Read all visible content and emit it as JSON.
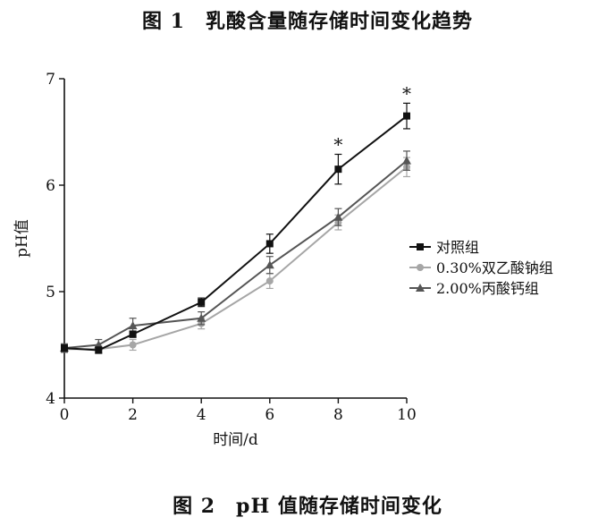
{
  "captions": {
    "top": "图 1　乳酸含量随存储时间变化趋势",
    "bottom": "图 2　pH 值随存储时间变化"
  },
  "chart_data": {
    "type": "line",
    "title": "",
    "xlabel": "时间/d",
    "ylabel": "pH值",
    "xlim": [
      0,
      10
    ],
    "ylim": [
      4,
      7
    ],
    "xticks": [
      0,
      2,
      4,
      6,
      8,
      10
    ],
    "yticks": [
      4,
      5,
      6,
      7
    ],
    "grid": false,
    "legend_position": "right",
    "x": [
      0,
      1,
      2,
      4,
      6,
      8,
      10
    ],
    "series": [
      {
        "name": "对照组",
        "color": "#111111",
        "marker": "square",
        "values": [
          4.47,
          4.45,
          4.6,
          4.9,
          5.45,
          6.15,
          6.65
        ],
        "errors": [
          0.03,
          0.03,
          0.03,
          0.04,
          0.09,
          0.14,
          0.12
        ]
      },
      {
        "name": "0.30%双乙酸钠组",
        "color": "#a6a6a6",
        "marker": "circle",
        "values": [
          4.46,
          4.46,
          4.5,
          4.7,
          5.1,
          5.65,
          6.17
        ],
        "errors": [
          0.03,
          0.03,
          0.05,
          0.05,
          0.07,
          0.07,
          0.09
        ]
      },
      {
        "name": "2.00%丙酸钙组",
        "color": "#555555",
        "marker": "triangle",
        "values": [
          4.47,
          4.5,
          4.68,
          4.75,
          5.25,
          5.7,
          6.23
        ],
        "errors": [
          0.04,
          0.05,
          0.07,
          0.06,
          0.08,
          0.08,
          0.09
        ]
      }
    ],
    "annotations": [
      {
        "x": 8,
        "y": 6.15,
        "text": "*"
      },
      {
        "x": 10,
        "y": 6.65,
        "text": "*"
      }
    ]
  }
}
